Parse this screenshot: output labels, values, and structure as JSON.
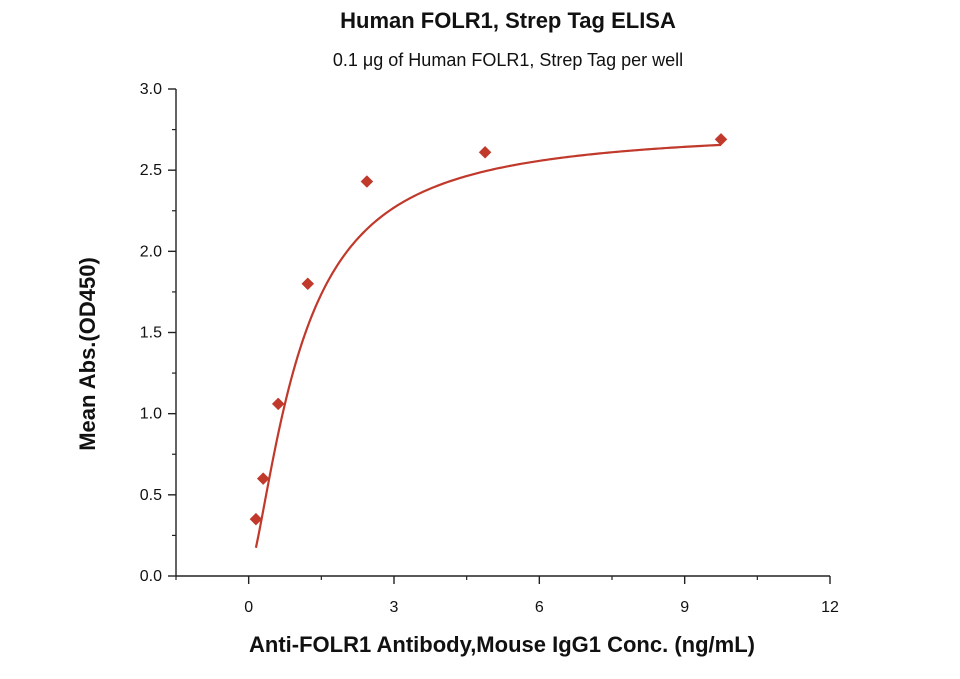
{
  "chart_data": {
    "type": "scatter",
    "title": "Human FOLR1, Strep Tag ELISA",
    "subtitle": "0.1 μg of Human FOLR1, Strep Tag per well",
    "xlabel": "Anti-FOLR1 Antibody,Mouse IgG1 Conc. (ng/mL)",
    "ylabel": "Mean Abs.(OD450)",
    "xlim": [
      -1.5,
      12
    ],
    "ylim": [
      0,
      3
    ],
    "x_ticks": [
      "0",
      "3",
      "6",
      "9",
      "12"
    ],
    "y_ticks": [
      "0.0",
      "0.5",
      "1.0",
      "1.5",
      "2.0",
      "2.5",
      "3.0"
    ],
    "grid": false,
    "legend": "none",
    "series": [
      {
        "points": [
          {
            "x": 0.15,
            "y": 0.35
          },
          {
            "x": 0.3,
            "y": 0.6
          },
          {
            "x": 0.61,
            "y": 1.06
          },
          {
            "x": 1.22,
            "y": 1.8
          },
          {
            "x": 2.44,
            "y": 2.43
          },
          {
            "x": 4.88,
            "y": 2.61
          },
          {
            "x": 9.75,
            "y": 2.69
          }
        ],
        "marker": "diamond",
        "color": "#c0392b"
      }
    ],
    "fit_curve": {
      "type": "4PL",
      "color": "#c0392b"
    }
  }
}
